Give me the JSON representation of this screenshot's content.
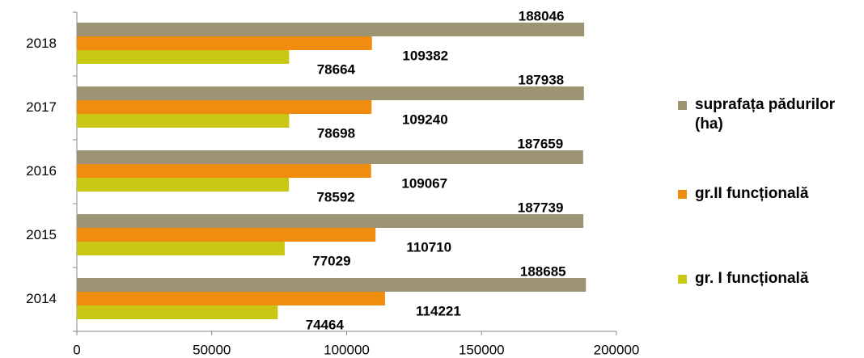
{
  "chart_data": {
    "type": "bar",
    "orientation": "horizontal",
    "categories": [
      "2014",
      "2015",
      "2016",
      "2017",
      "2018"
    ],
    "series": [
      {
        "name": "gr. I funcțională",
        "color": "#c8c814",
        "values": [
          74464,
          77029,
          78592,
          78698,
          78664
        ]
      },
      {
        "name": "gr.II funcțională",
        "color": "#f08c10",
        "values": [
          114221,
          110710,
          109067,
          109240,
          109382
        ]
      },
      {
        "name": "suprafața pădurilor (ha)",
        "color": "#9c9472",
        "values": [
          188685,
          187739,
          187659,
          187938,
          188046
        ]
      }
    ],
    "xlim": [
      0,
      200000
    ],
    "xticks": [
      0,
      50000,
      100000,
      150000,
      200000
    ],
    "legend": "right"
  }
}
